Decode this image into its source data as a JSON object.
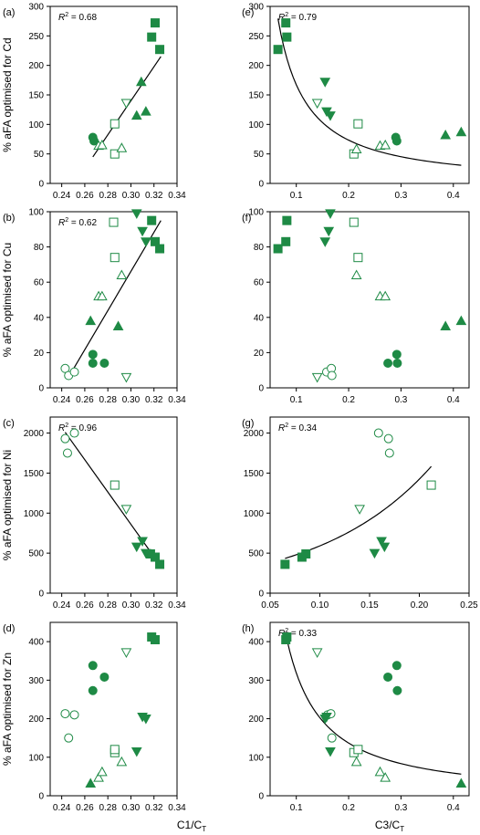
{
  "figure": {
    "colors": {
      "green": "#1e8a45",
      "axis": "#000000",
      "fit": "#000000"
    },
    "left_xlabel": "C1/C",
    "left_xlabel_sub": "T",
    "right_xlabel": "C3/C",
    "right_xlabel_sub": "T"
  },
  "chart_data": [
    {
      "id": "a",
      "panel_label": "(a)",
      "type": "scatter",
      "ylabel": "% aFA optimised for Cd",
      "xlim": [
        0.23,
        0.34
      ],
      "ylim": [
        0,
        300
      ],
      "xticks": [
        0.24,
        0.26,
        0.28,
        0.3,
        0.32,
        0.34
      ],
      "xtick_labels": [
        "0.24",
        "0.26",
        "0.28",
        "0.30",
        "0.32",
        "0.34"
      ],
      "yticks": [
        0,
        50,
        100,
        150,
        200,
        250,
        300
      ],
      "ytick_labels": [
        "0",
        "50",
        "100",
        "150",
        "200",
        "250",
        "300"
      ],
      "r2_label": "R",
      "r2_value": " = 0.68",
      "fit": {
        "kind": "line",
        "x": [
          0.267,
          0.326
        ],
        "y": [
          45,
          215
        ]
      },
      "series": [
        {
          "marker": "circle-filled",
          "x": [
            0.267,
            0.268
          ],
          "y": [
            78,
            72
          ]
        },
        {
          "marker": "circle-open",
          "x": [],
          "y": []
        },
        {
          "marker": "square-filled",
          "x": [
            0.318,
            0.321,
            0.325
          ],
          "y": [
            248,
            272,
            227
          ]
        },
        {
          "marker": "square-open",
          "x": [
            0.286,
            0.286
          ],
          "y": [
            101,
            50
          ]
        },
        {
          "marker": "triangle-up-filled",
          "x": [
            0.305,
            0.309,
            0.313
          ],
          "y": [
            115,
            172,
            122
          ]
        },
        {
          "marker": "triangle-up-open",
          "x": [
            0.272,
            0.275,
            0.292
          ],
          "y": [
            64,
            65,
            60
          ]
        },
        {
          "marker": "triangle-down-filled",
          "x": [],
          "y": []
        },
        {
          "marker": "triangle-down-open",
          "x": [
            0.296
          ],
          "y": [
            136
          ]
        }
      ]
    },
    {
      "id": "e",
      "panel_label": "(e)",
      "type": "scatter",
      "ylabel": "",
      "xlim": [
        0.05,
        0.43
      ],
      "ylim": [
        0,
        300
      ],
      "xticks": [
        0.1,
        0.2,
        0.3,
        0.4
      ],
      "xtick_labels": [
        "0.1",
        "0.2",
        "0.3",
        "0.4"
      ],
      "yticks": [
        0,
        50,
        100,
        150,
        200,
        250,
        300
      ],
      "ytick_labels": [
        "0",
        "50",
        "100",
        "150",
        "200",
        "250",
        "300"
      ],
      "r2_label": "R",
      "r2_value": " = 0.79",
      "fit": {
        "kind": "power",
        "x0": 0.065,
        "x1": 0.415,
        "a": 10.8,
        "b": -1.19
      },
      "series": [
        {
          "marker": "circle-filled",
          "x": [
            0.29,
            0.292
          ],
          "y": [
            78,
            72
          ]
        },
        {
          "marker": "circle-open",
          "x": [],
          "y": []
        },
        {
          "marker": "square-filled",
          "x": [
            0.065,
            0.08,
            0.082
          ],
          "y": [
            227,
            272,
            248
          ]
        },
        {
          "marker": "square-open",
          "x": [
            0.21,
            0.218
          ],
          "y": [
            50,
            101
          ]
        },
        {
          "marker": "triangle-up-filled",
          "x": [
            0.385,
            0.415
          ],
          "y": [
            82,
            87
          ]
        },
        {
          "marker": "triangle-up-open",
          "x": [
            0.215,
            0.26,
            0.27
          ],
          "y": [
            58,
            64,
            65
          ]
        },
        {
          "marker": "triangle-down-filled",
          "x": [
            0.155,
            0.158,
            0.165
          ],
          "y": [
            172,
            122,
            115
          ]
        },
        {
          "marker": "triangle-down-open",
          "x": [
            0.14
          ],
          "y": [
            136
          ]
        }
      ]
    },
    {
      "id": "b",
      "panel_label": "(b)",
      "type": "scatter",
      "ylabel": "% aFA optimised for Cu",
      "xlim": [
        0.23,
        0.34
      ],
      "ylim": [
        0,
        100
      ],
      "xticks": [
        0.24,
        0.26,
        0.28,
        0.3,
        0.32,
        0.34
      ],
      "xtick_labels": [
        "0.24",
        "0.26",
        "0.28",
        "0.30",
        "0.32",
        "0.34"
      ],
      "yticks": [
        0,
        20,
        40,
        60,
        80,
        100
      ],
      "ytick_labels": [
        "0",
        "20",
        "40",
        "60",
        "80",
        "100"
      ],
      "r2_label": "R",
      "r2_value": " = 0.62",
      "fit": {
        "kind": "line",
        "x": [
          0.245,
          0.326
        ],
        "y": [
          5,
          95
        ]
      },
      "series": [
        {
          "marker": "circle-filled",
          "x": [
            0.267,
            0.267,
            0.277
          ],
          "y": [
            19,
            14,
            14
          ]
        },
        {
          "marker": "circle-open",
          "x": [
            0.243,
            0.246,
            0.251
          ],
          "y": [
            11,
            7,
            9
          ]
        },
        {
          "marker": "square-filled",
          "x": [
            0.318,
            0.321,
            0.325
          ],
          "y": [
            95,
            83,
            79
          ]
        },
        {
          "marker": "square-open",
          "x": [
            0.285,
            0.286
          ],
          "y": [
            94,
            74
          ]
        },
        {
          "marker": "triangle-up-filled",
          "x": [
            0.265,
            0.289
          ],
          "y": [
            38,
            35
          ]
        },
        {
          "marker": "triangle-up-open",
          "x": [
            0.272,
            0.275,
            0.292
          ],
          "y": [
            52,
            52,
            64
          ]
        },
        {
          "marker": "triangle-down-filled",
          "x": [
            0.305,
            0.31,
            0.313
          ],
          "y": [
            99,
            89,
            83
          ]
        },
        {
          "marker": "triangle-down-open",
          "x": [
            0.296
          ],
          "y": [
            6
          ]
        }
      ]
    },
    {
      "id": "f",
      "panel_label": "(f)",
      "type": "scatter",
      "ylabel": "",
      "xlim": [
        0.05,
        0.43
      ],
      "ylim": [
        0,
        100
      ],
      "xticks": [
        0.1,
        0.2,
        0.3,
        0.4
      ],
      "xtick_labels": [
        "0.1",
        "0.2",
        "0.3",
        "0.4"
      ],
      "yticks": [
        0,
        20,
        40,
        60,
        80,
        100
      ],
      "ytick_labels": [
        "0",
        "20",
        "40",
        "60",
        "80",
        "100"
      ],
      "r2_label": "",
      "r2_value": "",
      "fit": null,
      "series": [
        {
          "marker": "circle-filled",
          "x": [
            0.275,
            0.292,
            0.293
          ],
          "y": [
            14,
            19,
            14
          ]
        },
        {
          "marker": "circle-open",
          "x": [
            0.158,
            0.167,
            0.168
          ],
          "y": [
            9,
            11,
            7
          ]
        },
        {
          "marker": "square-filled",
          "x": [
            0.065,
            0.08,
            0.082
          ],
          "y": [
            79,
            83,
            95
          ]
        },
        {
          "marker": "square-open",
          "x": [
            0.21,
            0.218
          ],
          "y": [
            94,
            74
          ]
        },
        {
          "marker": "triangle-up-filled",
          "x": [
            0.385,
            0.415
          ],
          "y": [
            35,
            38
          ]
        },
        {
          "marker": "triangle-up-open",
          "x": [
            0.215,
            0.26,
            0.27
          ],
          "y": [
            64,
            52,
            52
          ]
        },
        {
          "marker": "triangle-down-filled",
          "x": [
            0.155,
            0.162,
            0.165
          ],
          "y": [
            83,
            89,
            99
          ]
        },
        {
          "marker": "triangle-down-open",
          "x": [
            0.14
          ],
          "y": [
            6
          ]
        }
      ]
    },
    {
      "id": "c",
      "panel_label": "(c)",
      "type": "scatter",
      "ylabel": "% aFA optimised for Ni",
      "xlim": [
        0.23,
        0.34
      ],
      "ylim": [
        0,
        2200
      ],
      "xticks": [
        0.24,
        0.26,
        0.28,
        0.3,
        0.32,
        0.34
      ],
      "xtick_labels": [
        "0.24",
        "0.26",
        "0.28",
        "0.30",
        "0.32",
        "0.34"
      ],
      "yticks": [
        0,
        500,
        1000,
        1500,
        2000
      ],
      "ytick_labels": [
        "0",
        "500",
        "1000",
        "1500",
        "2000"
      ],
      "r2_label": "R",
      "r2_value": " = 0.96",
      "fit": {
        "kind": "line",
        "x": [
          0.243,
          0.326
        ],
        "y": [
          2010,
          335
        ]
      },
      "series": [
        {
          "marker": "circle-filled",
          "x": [],
          "y": []
        },
        {
          "marker": "circle-open",
          "x": [
            0.243,
            0.245,
            0.251
          ],
          "y": [
            1930,
            1750,
            2000
          ]
        },
        {
          "marker": "square-filled",
          "x": [
            0.317,
            0.321,
            0.325
          ],
          "y": [
            490,
            450,
            360
          ]
        },
        {
          "marker": "square-open",
          "x": [
            0.286
          ],
          "y": [
            1350
          ]
        },
        {
          "marker": "triangle-up-filled",
          "x": [],
          "y": []
        },
        {
          "marker": "triangle-up-open",
          "x": [],
          "y": []
        },
        {
          "marker": "triangle-down-filled",
          "x": [
            0.305,
            0.31,
            0.313
          ],
          "y": [
            580,
            650,
            500
          ]
        },
        {
          "marker": "triangle-down-open",
          "x": [
            0.296
          ],
          "y": [
            1050
          ]
        }
      ]
    },
    {
      "id": "g",
      "panel_label": "(g)",
      "type": "scatter",
      "ylabel": "",
      "xlim": [
        0.05,
        0.25
      ],
      "ylim": [
        0,
        2200
      ],
      "xticks": [
        0.05,
        0.1,
        0.15,
        0.2,
        0.25
      ],
      "xtick_labels": [
        "0.05",
        "0.10",
        "0.15",
        "0.20",
        "0.25"
      ],
      "yticks": [
        0,
        500,
        1000,
        1500,
        2000
      ],
      "ytick_labels": [
        "0",
        "500",
        "1000",
        "1500",
        "2000"
      ],
      "r2_label": "R",
      "r2_value": " = 0.34",
      "fit": {
        "kind": "exp",
        "x0": 0.065,
        "x1": 0.212,
        "a": 245,
        "b": 8.8
      },
      "series": [
        {
          "marker": "circle-filled",
          "x": [],
          "y": []
        },
        {
          "marker": "circle-open",
          "x": [
            0.159,
            0.169,
            0.17
          ],
          "y": [
            2000,
            1930,
            1750
          ]
        },
        {
          "marker": "square-filled",
          "x": [
            0.065,
            0.082,
            0.086
          ],
          "y": [
            360,
            450,
            490
          ]
        },
        {
          "marker": "square-open",
          "x": [
            0.212
          ],
          "y": [
            1350
          ]
        },
        {
          "marker": "triangle-up-filled",
          "x": [],
          "y": []
        },
        {
          "marker": "triangle-up-open",
          "x": [],
          "y": []
        },
        {
          "marker": "triangle-down-filled",
          "x": [
            0.155,
            0.162,
            0.165
          ],
          "y": [
            500,
            650,
            580
          ]
        },
        {
          "marker": "triangle-down-open",
          "x": [
            0.14
          ],
          "y": [
            1050
          ]
        }
      ]
    },
    {
      "id": "d",
      "panel_label": "(d)",
      "type": "scatter",
      "ylabel": "% aFA optimised for Zn",
      "xlim": [
        0.23,
        0.34
      ],
      "ylim": [
        0,
        450
      ],
      "xticks": [
        0.24,
        0.26,
        0.28,
        0.3,
        0.32,
        0.34
      ],
      "xtick_labels": [
        "0.24",
        "0.26",
        "0.28",
        "0.30",
        "0.32",
        "0.34"
      ],
      "yticks": [
        0,
        100,
        200,
        300,
        400
      ],
      "ytick_labels": [
        "0",
        "100",
        "200",
        "300",
        "400"
      ],
      "r2_label": "",
      "r2_value": "",
      "fit": null,
      "series": [
        {
          "marker": "circle-filled",
          "x": [
            0.267,
            0.267,
            0.277
          ],
          "y": [
            338,
            273,
            308
          ]
        },
        {
          "marker": "circle-open",
          "x": [
            0.243,
            0.246,
            0.251
          ],
          "y": [
            213,
            150,
            210
          ]
        },
        {
          "marker": "square-filled",
          "x": [
            0.318,
            0.321
          ],
          "y": [
            412,
            405
          ]
        },
        {
          "marker": "square-open",
          "x": [
            0.286,
            0.286
          ],
          "y": [
            112,
            120
          ]
        },
        {
          "marker": "triangle-up-filled",
          "x": [
            0.265
          ],
          "y": [
            32
          ]
        },
        {
          "marker": "triangle-up-open",
          "x": [
            0.272,
            0.275,
            0.292
          ],
          "y": [
            47,
            62,
            88
          ]
        },
        {
          "marker": "triangle-down-filled",
          "x": [
            0.305,
            0.31,
            0.313
          ],
          "y": [
            115,
            205,
            200
          ]
        },
        {
          "marker": "triangle-down-open",
          "x": [
            0.296
          ],
          "y": [
            372
          ]
        }
      ]
    },
    {
      "id": "h",
      "panel_label": "(h)",
      "type": "scatter",
      "ylabel": "",
      "xlim": [
        0.05,
        0.43
      ],
      "ylim": [
        0,
        450
      ],
      "xticks": [
        0.1,
        0.2,
        0.3,
        0.4
      ],
      "xtick_labels": [
        "0.1",
        "0.2",
        "0.3",
        "0.4"
      ],
      "yticks": [
        0,
        100,
        200,
        300,
        400
      ],
      "ytick_labels": [
        "0",
        "100",
        "200",
        "300",
        "400"
      ],
      "r2_label": "R",
      "r2_value": " = 0.33",
      "fit": {
        "kind": "power",
        "x0": 0.082,
        "x1": 0.415,
        "a": 19.2,
        "b": -1.22
      },
      "series": [
        {
          "marker": "circle-filled",
          "x": [
            0.275,
            0.292,
            0.293
          ],
          "y": [
            308,
            338,
            273
          ]
        },
        {
          "marker": "circle-open",
          "x": [
            0.16,
            0.166,
            0.168
          ],
          "y": [
            210,
            213,
            150
          ]
        },
        {
          "marker": "square-filled",
          "x": [
            0.08,
            0.082
          ],
          "y": [
            405,
            412
          ]
        },
        {
          "marker": "square-open",
          "x": [
            0.21,
            0.218
          ],
          "y": [
            112,
            120
          ]
        },
        {
          "marker": "triangle-up-filled",
          "x": [
            0.415
          ],
          "y": [
            32
          ]
        },
        {
          "marker": "triangle-up-open",
          "x": [
            0.215,
            0.26,
            0.27
          ],
          "y": [
            88,
            62,
            47
          ]
        },
        {
          "marker": "triangle-down-filled",
          "x": [
            0.155,
            0.158,
            0.165
          ],
          "y": [
            200,
            205,
            115
          ]
        },
        {
          "marker": "triangle-down-open",
          "x": [
            0.14
          ],
          "y": [
            372
          ]
        }
      ]
    }
  ]
}
